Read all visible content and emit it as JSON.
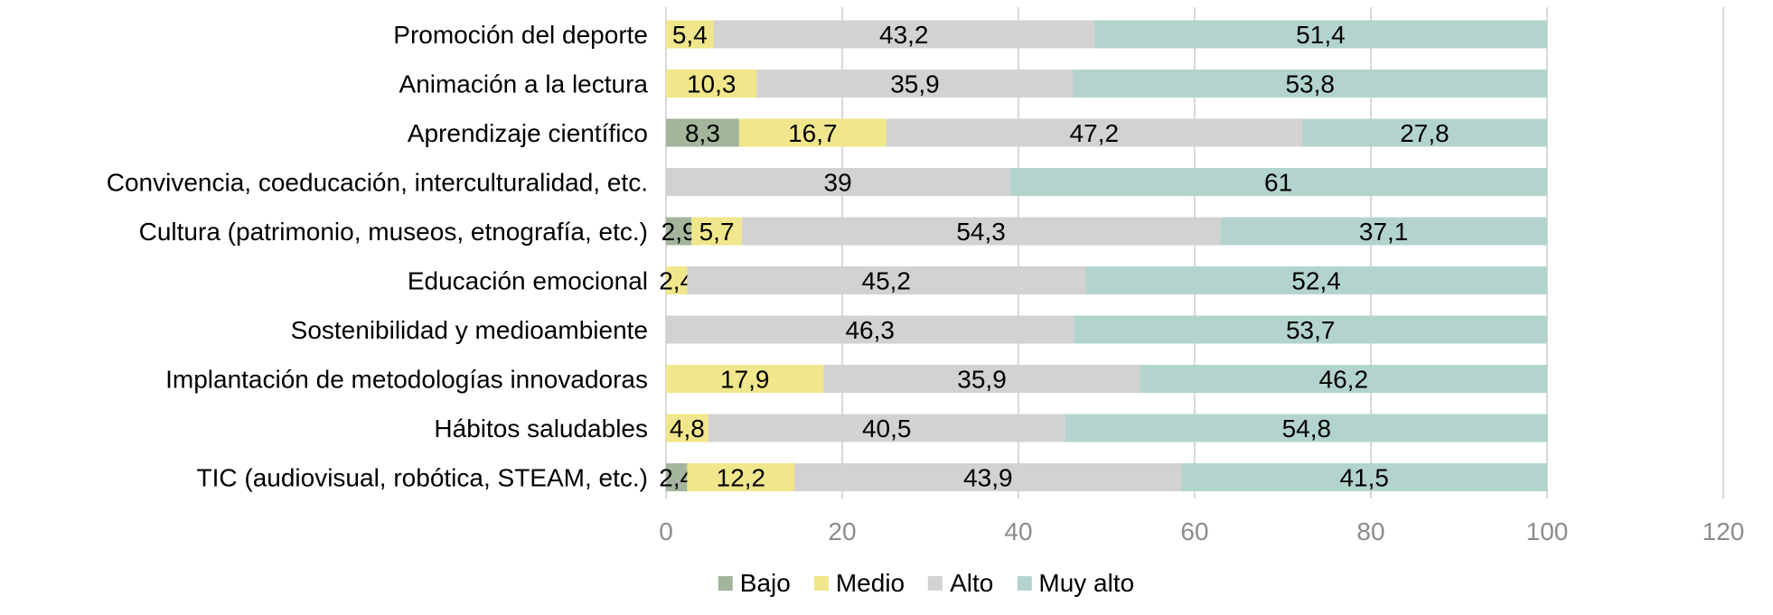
{
  "chart_data": {
    "type": "bar",
    "orientation": "horizontal",
    "stacked": true,
    "title": "",
    "xlabel": "",
    "ylabel": "",
    "xlim": [
      0,
      120
    ],
    "xticks": [
      0,
      20,
      40,
      60,
      80,
      100,
      120
    ],
    "xtick_labels": [
      "0",
      "20",
      "40",
      "60",
      "80",
      "100",
      "120"
    ],
    "grid": "vertical",
    "legend_position": "bottom",
    "categories": [
      "Promoción del deporte",
      "Animación a la lectura",
      "Aprendizaje científico",
      "Convivencia, coeducación, interculturalidad, etc.",
      "Cultura (patrimonio, museos, etnografía, etc.)",
      "Educación emocional",
      "Sostenibilidad y medioambiente",
      "Implantación de metodologías innovadoras",
      "Hábitos saludables",
      "TIC (audiovisual, robótica, STEAM, etc.)"
    ],
    "series": [
      {
        "name": "Bajo",
        "color": "#a3b59b",
        "values": [
          null,
          null,
          8.3,
          null,
          2.9,
          null,
          null,
          null,
          null,
          2.4
        ],
        "labels": [
          null,
          null,
          "8,3",
          null,
          "2,9",
          null,
          null,
          null,
          null,
          "2,4"
        ]
      },
      {
        "name": "Medio",
        "color": "#f0e68b",
        "values": [
          5.4,
          10.3,
          16.7,
          null,
          5.7,
          2.4,
          null,
          17.9,
          4.8,
          12.2
        ],
        "labels": [
          "5,4",
          "10,3",
          "16,7",
          null,
          "5,7",
          "2,4",
          null,
          "17,9",
          "4,8",
          "12,2"
        ]
      },
      {
        "name": "Alto",
        "color": "#d3d1d1",
        "values": [
          43.2,
          35.9,
          47.2,
          39,
          54.3,
          45.2,
          46.3,
          35.9,
          40.5,
          43.9
        ],
        "labels": [
          "43,2",
          "35,9",
          "47,2",
          "39",
          "54,3",
          "45,2",
          "46,3",
          "35,9",
          "40,5",
          "43,9"
        ]
      },
      {
        "name": "Muy alto",
        "color": "#b3d4cd",
        "values": [
          51.4,
          53.8,
          27.8,
          61,
          37.1,
          52.4,
          53.7,
          46.2,
          54.8,
          41.5
        ],
        "labels": [
          "51,4",
          "53,8",
          "27,8",
          "61",
          "37,1",
          "52,4",
          "53,7",
          "46,2",
          "54,8",
          "41,5"
        ]
      }
    ]
  }
}
